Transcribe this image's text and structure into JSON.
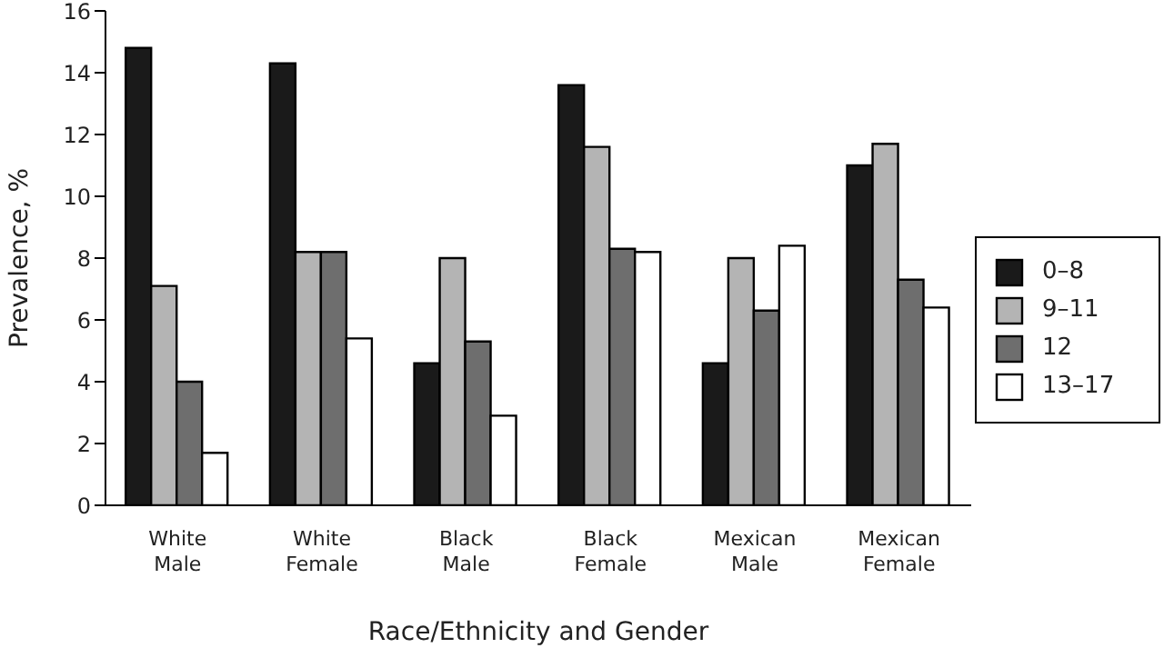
{
  "chart_data": {
    "type": "bar",
    "xlabel": "Race/Ethnicity and Gender",
    "ylabel": "Prevalence, %",
    "categories": [
      "White Male",
      "White Female",
      "Black Male",
      "Black Female",
      "Mexican Male",
      "Mexican Female"
    ],
    "series": [
      {
        "name": "0–8",
        "color": "#1a1a1a",
        "values": [
          14.8,
          14.3,
          4.6,
          13.6,
          4.6,
          11.0
        ]
      },
      {
        "name": "9–11",
        "color": "#b4b4b4",
        "values": [
          7.1,
          8.2,
          8.0,
          11.6,
          8.0,
          11.7
        ]
      },
      {
        "name": "12",
        "color": "#6e6e6e",
        "values": [
          4.0,
          8.2,
          5.3,
          8.3,
          6.3,
          7.3
        ]
      },
      {
        "name": "13–17",
        "color": "#ffffff",
        "values": [
          1.7,
          5.4,
          2.9,
          8.2,
          8.4,
          6.4
        ]
      }
    ],
    "ylim": [
      0,
      16
    ],
    "yticks": [
      0,
      2,
      4,
      6,
      8,
      10,
      12,
      14,
      16
    ],
    "grid": false,
    "legend": "right"
  }
}
